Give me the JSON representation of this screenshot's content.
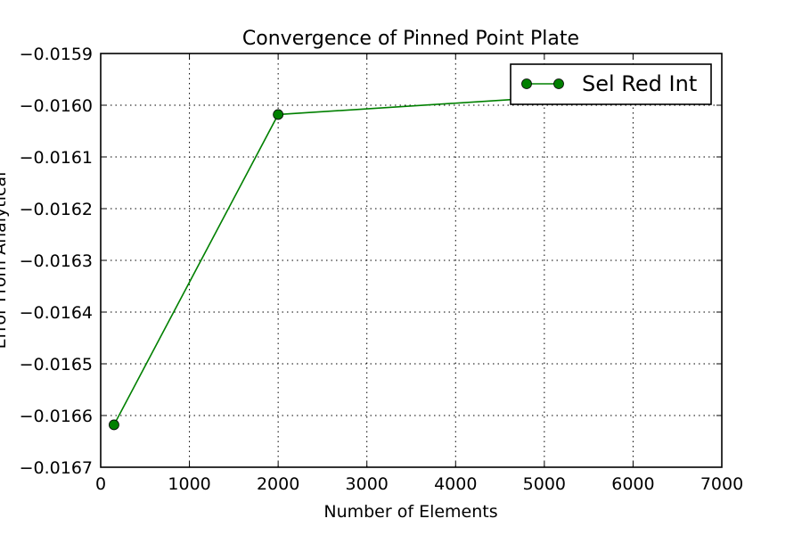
{
  "chart_data": {
    "type": "line",
    "title": "Convergence of Pinned Point Plate",
    "xlabel": "Number of Elements",
    "ylabel": "Error From Analytical",
    "xlim": [
      0,
      7000
    ],
    "ylim": [
      -0.0167,
      -0.0159
    ],
    "x_ticks": [
      "0",
      "1000",
      "2000",
      "3000",
      "4000",
      "5000",
      "6000",
      "7000"
    ],
    "y_ticks": [
      "−0.0159",
      "−0.0160",
      "−0.0161",
      "−0.0162",
      "−0.0163",
      "−0.0164",
      "−0.0165",
      "−0.0166",
      "−0.0167"
    ],
    "grid": true,
    "legend_position": "top-right",
    "series": [
      {
        "name": "Sel Red Int",
        "color": "#008000",
        "marker": "circle",
        "x": [
          150,
          2000,
          5000
        ],
        "y": [
          -0.016618,
          -0.016018,
          -0.015985
        ]
      }
    ]
  }
}
